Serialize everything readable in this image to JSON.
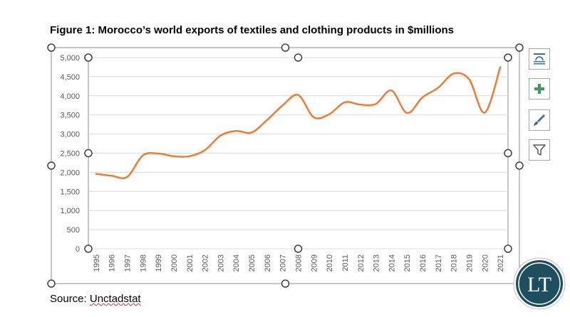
{
  "title": "Figure 1: Morocco’s world exports of textiles and clothing products in $millions",
  "source_prefix": "Source: ",
  "source_name": "Unctadstat",
  "logo_text": "LT",
  "colors": {
    "line": "#ED7D31",
    "grid": "#d9d9d9",
    "axis": "#595959",
    "handle": "#404040",
    "logo_bg": "#1f4e5f"
  },
  "side_buttons": [
    "chart-layout-icon",
    "chart-elements-icon",
    "chart-styles-icon",
    "chart-filters-icon"
  ],
  "chart_data": {
    "type": "line",
    "title": "",
    "xlabel": "",
    "ylabel": "",
    "ylim": [
      0,
      5000
    ],
    "yticks": [
      0,
      500,
      1000,
      1500,
      2000,
      2500,
      3000,
      3500,
      4000,
      4500,
      5000
    ],
    "ytick_labels": [
      "0",
      "500",
      "1,000",
      "1,500",
      "2,000",
      "2,500",
      "3,000",
      "3,500",
      "4,000",
      "4,500",
      "5,000"
    ],
    "grid": true,
    "legend": "none",
    "categories": [
      "1995",
      "1996",
      "1997",
      "1998",
      "1999",
      "2000",
      "2001",
      "2002",
      "2003",
      "2004",
      "2005",
      "2006",
      "2007",
      "2008",
      "2009",
      "2010",
      "2011",
      "2012",
      "2013",
      "2014",
      "2015",
      "2016",
      "2017",
      "2018",
      "2019",
      "2020",
      "2021"
    ],
    "series": [
      {
        "values": [
          1960,
          1910,
          1880,
          2440,
          2490,
          2420,
          2420,
          2580,
          2960,
          3080,
          3040,
          3370,
          3750,
          4020,
          3440,
          3520,
          3830,
          3770,
          3790,
          4140,
          3550,
          3960,
          4210,
          4580,
          4430,
          3560,
          4750
        ]
      }
    ]
  }
}
